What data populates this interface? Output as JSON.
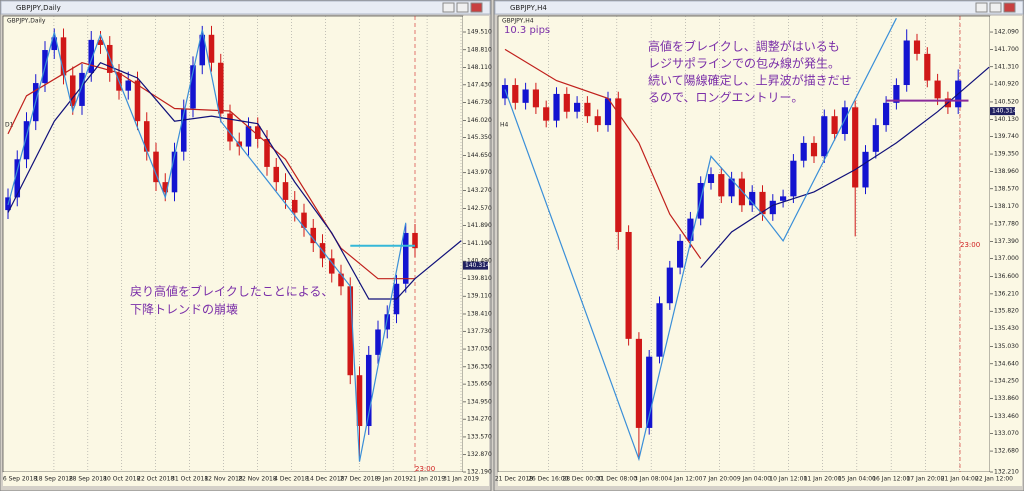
{
  "chart_data": [
    {
      "type": "candlestick",
      "window_title": "GBPJPY,Daily",
      "chart_label": "GBPJPY,Daily",
      "timeframe": "D1",
      "bull_color": "#1414d0",
      "bear_color": "#d01818",
      "ylim": [
        132.19,
        150.14
      ],
      "yticks": [
        {
          "value": 149.51,
          "label": "149.510"
        },
        {
          "value": 148.81,
          "label": "148.810"
        },
        {
          "value": 148.11,
          "label": "148.110"
        },
        {
          "value": 147.43,
          "label": "147.430"
        },
        {
          "value": 146.73,
          "label": "146.730"
        },
        {
          "value": 146.02,
          "label": "146.020"
        },
        {
          "value": 145.35,
          "label": "145.350"
        },
        {
          "value": 144.65,
          "label": "144.650"
        },
        {
          "value": 143.97,
          "label": "143.970"
        },
        {
          "value": 143.27,
          "label": "143.270"
        },
        {
          "value": 142.57,
          "label": "142.570"
        },
        {
          "value": 141.89,
          "label": "141.890"
        },
        {
          "value": 141.19,
          "label": "141.190"
        },
        {
          "value": 140.49,
          "label": "140.490"
        },
        {
          "value": 139.81,
          "label": "139.810"
        },
        {
          "value": 139.11,
          "label": "139.110"
        },
        {
          "value": 138.41,
          "label": "138.410"
        },
        {
          "value": 137.73,
          "label": "137.730"
        },
        {
          "value": 137.03,
          "label": "137.030"
        },
        {
          "value": 136.33,
          "label": "136.330"
        },
        {
          "value": 135.65,
          "label": "135.650"
        },
        {
          "value": 134.95,
          "label": "134.950"
        },
        {
          "value": 134.27,
          "label": "134.270"
        },
        {
          "value": 133.57,
          "label": "133.570"
        },
        {
          "value": 132.87,
          "label": "132.870"
        },
        {
          "value": 132.19,
          "label": "132.190"
        }
      ],
      "price_tag": {
        "value": 140.314,
        "label": "140.314"
      },
      "time_label": "23:00",
      "date_labels": [
        "6 Sep 2018",
        "18 Sep 2018",
        "28 Sep 2018",
        "10 Oct 2018",
        "22 Oct 2018",
        "31 Oct 2018",
        "12 Nov 2018",
        "22 Nov 2018",
        "4 Dec 2018",
        "14 Dec 2018",
        "27 Dec 2018",
        "9 Jan 2019",
        "21 Jan 2019",
        "31 Jan 2019"
      ],
      "annotation": [
        "戻り高値をブレイクしたことによる、",
        "下降トレンドの崩壊"
      ],
      "candles": [
        [
          142.5,
          143.35,
          142.15,
          143.0
        ],
        [
          143.0,
          144.85,
          142.65,
          144.5
        ],
        [
          144.5,
          146.35,
          144.15,
          146.0
        ],
        [
          146.0,
          147.85,
          145.65,
          147.5
        ],
        [
          147.5,
          149.15,
          147.15,
          148.8
        ],
        [
          148.8,
          149.65,
          148.45,
          149.3
        ],
        [
          149.3,
          149.65,
          147.45,
          147.8
        ],
        [
          147.8,
          148.15,
          146.25,
          146.6
        ],
        [
          146.6,
          148.25,
          146.25,
          147.9
        ],
        [
          147.9,
          149.55,
          147.55,
          149.2
        ],
        [
          149.2,
          149.55,
          148.65,
          149.0
        ],
        [
          149.0,
          149.35,
          147.55,
          147.9
        ],
        [
          147.9,
          148.25,
          146.85,
          147.2
        ],
        [
          147.2,
          147.95,
          146.85,
          147.6
        ],
        [
          147.6,
          147.95,
          145.65,
          146.0
        ],
        [
          146.0,
          146.35,
          144.45,
          144.8
        ],
        [
          144.8,
          145.15,
          143.25,
          143.6
        ],
        [
          143.6,
          143.95,
          142.85,
          143.2
        ],
        [
          143.2,
          145.15,
          142.85,
          144.8
        ],
        [
          144.8,
          146.85,
          144.45,
          146.5
        ],
        [
          146.5,
          148.55,
          146.15,
          148.2
        ],
        [
          148.2,
          149.75,
          147.85,
          149.4
        ],
        [
          149.4,
          149.75,
          147.95,
          148.3
        ],
        [
          148.3,
          148.65,
          145.95,
          146.3
        ],
        [
          146.3,
          146.65,
          144.85,
          145.2
        ],
        [
          145.2,
          145.55,
          144.65,
          145.0
        ],
        [
          145.0,
          146.15,
          144.65,
          145.8
        ],
        [
          145.8,
          146.15,
          144.95,
          145.3
        ],
        [
          145.3,
          145.65,
          143.85,
          144.2
        ],
        [
          144.2,
          144.55,
          143.25,
          143.6
        ],
        [
          143.6,
          143.95,
          142.55,
          142.9
        ],
        [
          142.9,
          143.25,
          142.05,
          142.4
        ],
        [
          142.4,
          142.75,
          141.45,
          141.8
        ],
        [
          141.8,
          142.15,
          140.85,
          141.2
        ],
        [
          141.2,
          141.55,
          140.25,
          140.6
        ],
        [
          140.6,
          140.95,
          139.65,
          140.0
        ],
        [
          140.0,
          140.35,
          139.15,
          139.5
        ],
        [
          139.5,
          139.85,
          135.65,
          136.0
        ],
        [
          136.0,
          136.35,
          132.6,
          134.0
        ],
        [
          134.0,
          137.15,
          133.65,
          136.8
        ],
        [
          136.8,
          138.15,
          136.45,
          137.8
        ],
        [
          137.8,
          138.75,
          137.45,
          138.4
        ],
        [
          138.4,
          139.95,
          138.05,
          139.6
        ],
        [
          139.6,
          141.95,
          139.25,
          141.6
        ],
        [
          141.6,
          141.95,
          140.65,
          141.0
        ]
      ],
      "lines": [
        {
          "color": "#c0201c",
          "x": [
            0,
            2,
            8,
            12,
            18,
            24,
            30,
            36,
            40,
            44
          ],
          "values": [
            145.5,
            147.0,
            148.3,
            147.9,
            146.5,
            146.4,
            144.5,
            141.0,
            139.8,
            139.8
          ]
        },
        {
          "color": "#10107a",
          "x": [
            0,
            5,
            10,
            14,
            18,
            22,
            27,
            31,
            35,
            39,
            42,
            44,
            49
          ],
          "values": [
            142.4,
            146.0,
            148.3,
            147.7,
            146.0,
            146.2,
            145.9,
            143.6,
            141.6,
            139.0,
            139.0,
            139.8,
            141.3
          ]
        },
        {
          "color": "#3a8fd8",
          "x": [
            0,
            5,
            7,
            10,
            17,
            21,
            23,
            37,
            38,
            43
          ],
          "values": [
            142.7,
            149.5,
            146.4,
            149.4,
            143.0,
            149.6,
            146.0,
            139.5,
            132.6,
            142.0
          ]
        },
        {
          "color": "#35b8d8",
          "x": [
            37,
            44
          ],
          "values": [
            141.1,
            141.1
          ]
        }
      ]
    },
    {
      "type": "candlestick",
      "window_title": "GBPJPY,H4",
      "chart_label": "GBPJPY,H4",
      "timeframe": "H4",
      "bull_color": "#1414d0",
      "bear_color": "#d01818",
      "ylim": [
        132.21,
        142.45
      ],
      "yticks": [
        {
          "value": 142.09,
          "label": "142.090"
        },
        {
          "value": 141.7,
          "label": "141.700"
        },
        {
          "value": 141.31,
          "label": "141.310"
        },
        {
          "value": 140.92,
          "label": "140.920"
        },
        {
          "value": 140.52,
          "label": "140.520"
        },
        {
          "value": 140.13,
          "label": "140.130"
        },
        {
          "value": 139.74,
          "label": "139.740"
        },
        {
          "value": 139.35,
          "label": "139.350"
        },
        {
          "value": 138.96,
          "label": "138.960"
        },
        {
          "value": 138.57,
          "label": "138.570"
        },
        {
          "value": 138.17,
          "label": "138.170"
        },
        {
          "value": 137.78,
          "label": "137.780"
        },
        {
          "value": 137.39,
          "label": "137.390"
        },
        {
          "value": 137,
          "label": "137.000"
        },
        {
          "value": 136.6,
          "label": "136.600"
        },
        {
          "value": 136.21,
          "label": "136.210"
        },
        {
          "value": 135.82,
          "label": "135.820"
        },
        {
          "value": 135.43,
          "label": "135.430"
        },
        {
          "value": 135.03,
          "label": "135.030"
        },
        {
          "value": 134.64,
          "label": "134.640"
        },
        {
          "value": 134.25,
          "label": "134.250"
        },
        {
          "value": 133.86,
          "label": "133.860"
        },
        {
          "value": 133.46,
          "label": "133.460"
        },
        {
          "value": 133.07,
          "label": "133.070"
        },
        {
          "value": 132.68,
          "label": "132.680"
        },
        {
          "value": 132.21,
          "label": "132.210"
        }
      ],
      "price_tag": {
        "value": 140.314,
        "label": "140.314"
      },
      "time_label": "23:00",
      "note": "10.3 pips",
      "date_labels": [
        "21 Dec 2018",
        "26 Dec 16:00",
        "28 Dec 00:00",
        "31 Dec 08:00",
        "3 Jan 08:00",
        "4 Jan 12:00",
        "7 Jan 20:00",
        "9 Jan 04:00",
        "10 Jan 12:00",
        "11 Jan 20:00",
        "15 Jan 04:00",
        "16 Jan 12:00",
        "17 Jan 20:00",
        "21 Jan 04:00",
        "22 Jan 12:00"
      ],
      "annotation": [
        "高値をブレイクし、調整がはいるも",
        "レジサポラインでの包み線が発生。",
        "続いて陽線確定し、上昇波が描きだせ",
        "るので、ロングエントリー。"
      ],
      "candles": [
        [
          140.6,
          141.05,
          140.45,
          140.9
        ],
        [
          140.9,
          141.05,
          140.35,
          140.5
        ],
        [
          140.5,
          140.95,
          140.35,
          140.8
        ],
        [
          140.8,
          140.95,
          140.25,
          140.4
        ],
        [
          140.4,
          140.55,
          139.95,
          140.1
        ],
        [
          140.1,
          140.85,
          139.95,
          140.7
        ],
        [
          140.7,
          140.85,
          140.15,
          140.3
        ],
        [
          140.3,
          140.65,
          140.15,
          140.5
        ],
        [
          140.5,
          140.65,
          140.05,
          140.2
        ],
        [
          140.2,
          140.35,
          139.85,
          140.0
        ],
        [
          140.0,
          140.75,
          139.85,
          140.6
        ],
        [
          140.6,
          140.75,
          137.2,
          137.6
        ],
        [
          137.6,
          137.75,
          135.05,
          135.2
        ],
        [
          135.2,
          135.35,
          132.5,
          133.2
        ],
        [
          133.2,
          134.95,
          133.05,
          134.8
        ],
        [
          134.8,
          136.15,
          134.65,
          136.0
        ],
        [
          136.0,
          136.95,
          135.85,
          136.8
        ],
        [
          136.8,
          137.55,
          136.65,
          137.4
        ],
        [
          137.4,
          138.05,
          137.25,
          137.9
        ],
        [
          137.9,
          138.85,
          137.75,
          138.7
        ],
        [
          138.7,
          139.05,
          138.55,
          138.9
        ],
        [
          138.9,
          139.05,
          138.25,
          138.4
        ],
        [
          138.4,
          138.95,
          138.25,
          138.8
        ],
        [
          138.8,
          138.95,
          138.05,
          138.2
        ],
        [
          138.2,
          138.65,
          138.05,
          138.5
        ],
        [
          138.5,
          138.65,
          137.85,
          138.0
        ],
        [
          138.0,
          138.45,
          137.85,
          138.3
        ],
        [
          138.3,
          138.55,
          138.15,
          138.4
        ],
        [
          138.4,
          139.35,
          138.25,
          139.2
        ],
        [
          139.2,
          139.75,
          139.05,
          139.6
        ],
        [
          139.6,
          139.75,
          139.15,
          139.3
        ],
        [
          139.3,
          140.35,
          139.15,
          140.2
        ],
        [
          140.2,
          140.35,
          139.65,
          139.8
        ],
        [
          139.8,
          140.55,
          139.65,
          140.4
        ],
        [
          140.4,
          140.55,
          137.5,
          138.6
        ],
        [
          138.6,
          139.55,
          138.45,
          139.4
        ],
        [
          139.4,
          140.15,
          139.25,
          140.0
        ],
        [
          140.0,
          140.65,
          139.85,
          140.5
        ],
        [
          140.5,
          141.05,
          140.35,
          140.9
        ],
        [
          140.9,
          142.15,
          140.75,
          141.9
        ],
        [
          141.9,
          142.05,
          141.45,
          141.6
        ],
        [
          141.6,
          141.75,
          140.85,
          141.0
        ],
        [
          141.0,
          141.15,
          140.45,
          140.6
        ],
        [
          140.6,
          140.75,
          140.25,
          140.4
        ],
        [
          140.4,
          141.25,
          140.25,
          141.0
        ]
      ],
      "lines": [
        {
          "color": "#c0201c",
          "x": [
            0,
            5,
            10,
            13,
            16,
            19
          ],
          "values": [
            141.7,
            141.0,
            140.6,
            139.6,
            138.0,
            137.0
          ]
        },
        {
          "color": "#10107a",
          "x": [
            19,
            22,
            26,
            30,
            34,
            38,
            42,
            47
          ],
          "values": [
            136.8,
            137.6,
            138.2,
            138.5,
            139.0,
            139.6,
            140.3,
            141.3
          ]
        },
        {
          "color": "#3a8fd8",
          "x": [
            0,
            13,
            20,
            25,
            27,
            38
          ],
          "values": [
            140.8,
            132.5,
            139.3,
            138.0,
            137.4,
            142.4
          ]
        },
        {
          "color": "#8a2a9a",
          "x": [
            37,
            45
          ],
          "values": [
            140.55,
            140.55
          ]
        }
      ]
    }
  ]
}
